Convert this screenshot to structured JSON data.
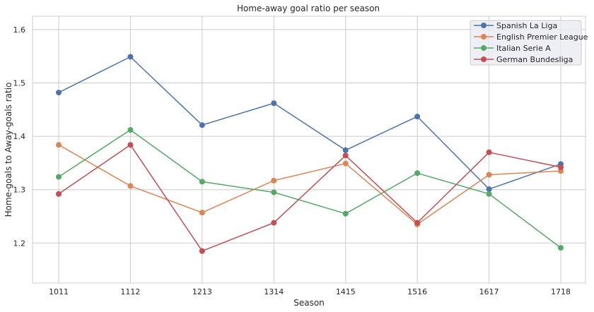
{
  "chart_data": {
    "type": "line",
    "title": "Home-away goal ratio per season",
    "xlabel": "Season",
    "ylabel": "Home-goals to Away-goals ratio",
    "categories": [
      "1011",
      "1112",
      "1213",
      "1314",
      "1415",
      "1516",
      "1617",
      "1718"
    ],
    "ylim": [
      1.125,
      1.625
    ],
    "yticks": [
      1.2,
      1.3,
      1.4,
      1.5,
      1.6
    ],
    "ytick_labels": [
      "1.2",
      "1.3",
      "1.4",
      "1.5",
      "1.6"
    ],
    "grid": true,
    "legend_position": "top-right",
    "series": [
      {
        "name": "Spanish La Liga",
        "color": "#4c72b0",
        "values": [
          1.482,
          1.549,
          1.421,
          1.462,
          1.374,
          1.437,
          1.301,
          1.348
        ]
      },
      {
        "name": "English Premier League",
        "color": "#dd8452",
        "values": [
          1.384,
          1.307,
          1.257,
          1.317,
          1.349,
          1.235,
          1.328,
          1.335
        ]
      },
      {
        "name": "Italian Serie A",
        "color": "#55a868",
        "values": [
          1.324,
          1.412,
          1.315,
          1.295,
          1.255,
          1.331,
          1.292,
          1.191
        ]
      },
      {
        "name": "German Bundesliga",
        "color": "#c44e52",
        "values": [
          1.292,
          1.384,
          1.185,
          1.238,
          1.364,
          1.238,
          1.37,
          1.342
        ]
      }
    ]
  }
}
